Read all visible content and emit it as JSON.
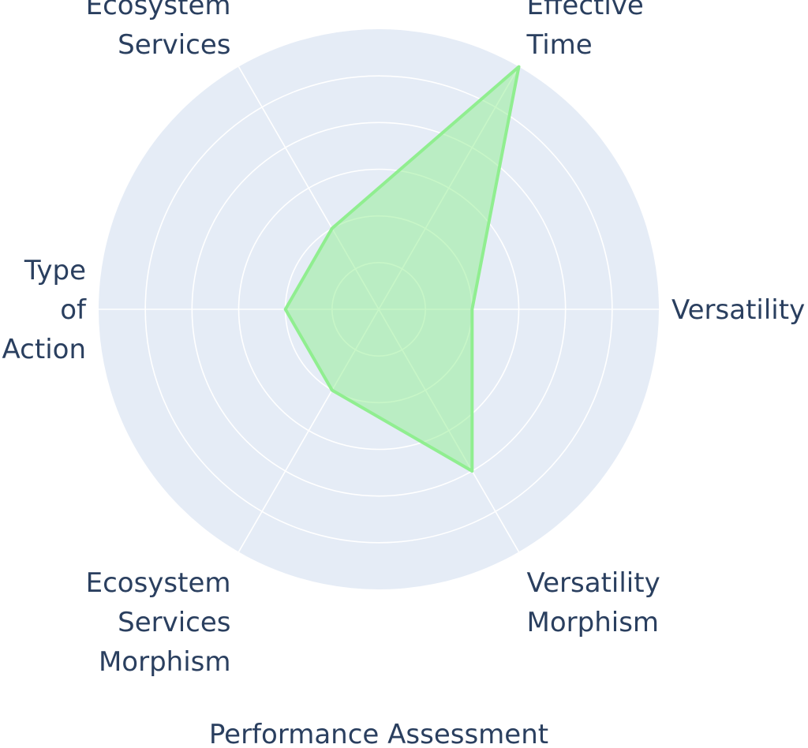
{
  "chart_data": {
    "type": "radar",
    "title": "",
    "axes": [
      "Versatility",
      "Effective Time",
      "Ecosystem Services",
      "Type of Action",
      "Ecosystem Services Morphism",
      "Versatility Morphism"
    ],
    "axis_label_lines": [
      [
        "Versatility"
      ],
      [
        "Effective",
        "Time"
      ],
      [
        "Ecosystem",
        "Services"
      ],
      [
        "Type",
        "of",
        "Action"
      ],
      [
        "Ecosystem",
        "Services",
        "Morphism"
      ],
      [
        "Versatility",
        "Morphism"
      ]
    ],
    "series": [
      {
        "values": [
          2,
          6,
          2,
          2,
          2,
          4
        ]
      }
    ],
    "radial_range": [
      0,
      6
    ],
    "radial_gridlines": [
      1,
      2,
      3,
      4,
      5,
      6
    ],
    "xlabel": "Performance Assessment",
    "grid": true,
    "colors": {
      "plot_bg": "#e5ecf6",
      "grid": "#ffffff",
      "fill": "#90ee90",
      "line": "#90ee90",
      "text": "#2a3f5f"
    }
  }
}
